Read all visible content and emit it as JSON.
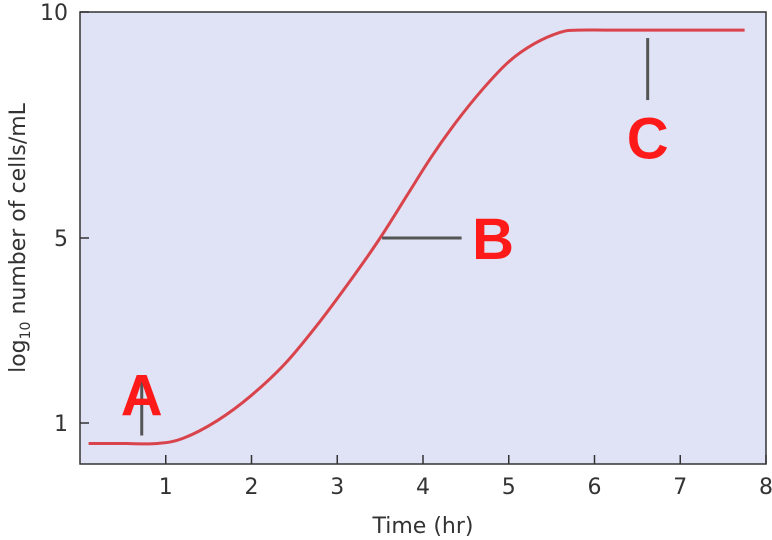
{
  "chart_data": {
    "type": "line",
    "xlabel": "Time (hr)",
    "ylabel": {
      "prefix": "log",
      "subscript": "10",
      "suffix": " number of cells/mL"
    },
    "xlim": [
      0,
      8
    ],
    "ylim": [
      0.2,
      10
    ],
    "x_ticks": [
      1,
      2,
      3,
      4,
      5,
      6,
      7,
      8
    ],
    "y_ticks": [
      1,
      5,
      10
    ],
    "plot_background": "#dfe3f5",
    "line_color": "#d9434b",
    "label_color": "#ff1a1a",
    "leader_color": "#555555",
    "grid": false,
    "series": [
      {
        "x": [
          0.1,
          0.5,
          0.9,
          1.2,
          1.6,
          2.0,
          2.4,
          2.8,
          3.2,
          3.5,
          3.8,
          4.1,
          4.4,
          4.7,
          5.0,
          5.3,
          5.6,
          5.8,
          6.2,
          7.0,
          7.75
        ],
        "y": [
          0.6,
          0.6,
          0.6,
          0.7,
          1.05,
          1.6,
          2.3,
          3.2,
          4.2,
          5.0,
          5.9,
          6.8,
          7.6,
          8.3,
          8.9,
          9.3,
          9.55,
          9.6,
          9.6,
          9.6,
          9.6
        ]
      }
    ],
    "annotations": [
      {
        "text": "A",
        "x": 0.72,
        "y": 1.6
      },
      {
        "text": "B",
        "x": 4.55,
        "y": 5.0
      },
      {
        "text": "C",
        "x": 6.62,
        "y": 7.2
      }
    ]
  }
}
